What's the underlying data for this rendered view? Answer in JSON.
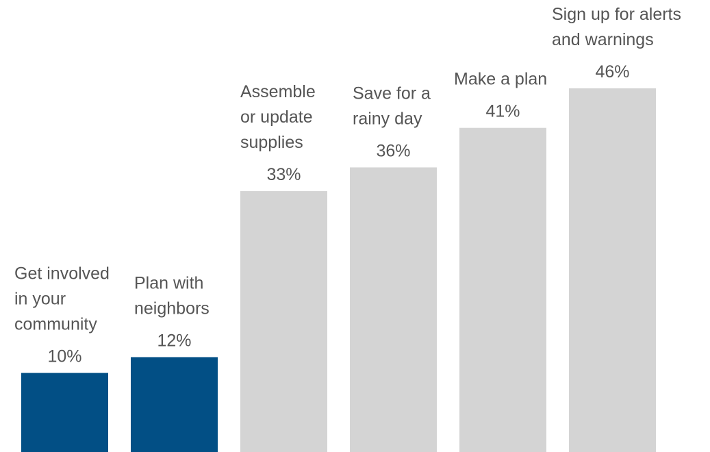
{
  "chart_data": {
    "type": "bar",
    "categories": [
      [
        "Get involved",
        "in your",
        "community"
      ],
      [
        "Plan with",
        "neighbors"
      ],
      [
        "Assemble",
        "or update",
        "supplies"
      ],
      [
        "Save for a",
        "rainy day"
      ],
      [
        "Make a plan"
      ],
      [
        "Sign up for alerts",
        "and warnings"
      ]
    ],
    "values": [
      10,
      12,
      33,
      36,
      41,
      46
    ],
    "value_labels": [
      "10%",
      "12%",
      "33%",
      "36%",
      "41%",
      "46%"
    ],
    "ylim": [
      0,
      46
    ],
    "grid": false,
    "highlighted": [
      true,
      true,
      false,
      false,
      false,
      false
    ],
    "colors": {
      "highlight": "#024f85",
      "default": "#d4d4d4",
      "text": "#555555"
    }
  }
}
